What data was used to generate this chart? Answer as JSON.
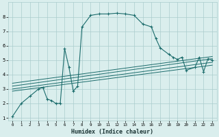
{
  "xlabel": "Humidex (Indice chaleur)",
  "bg_color": "#daeeed",
  "grid_color": "#aacccc",
  "line_color": "#1a6b6b",
  "xlim": [
    -0.5,
    23.5
  ],
  "ylim": [
    0.8,
    9.0
  ],
  "xticks": [
    0,
    1,
    2,
    3,
    4,
    5,
    6,
    7,
    8,
    9,
    10,
    11,
    12,
    13,
    14,
    15,
    16,
    17,
    18,
    19,
    20,
    21,
    22,
    23
  ],
  "yticks": [
    1,
    2,
    3,
    4,
    5,
    6,
    7,
    8
  ],
  "main_x": [
    0,
    1,
    2,
    3,
    3.5,
    4,
    4.5,
    5,
    5.5,
    6,
    6.5,
    7,
    7.5,
    8,
    9,
    10,
    11,
    12,
    13,
    14,
    15,
    16,
    16.5,
    17,
    18,
    18.5,
    19,
    19.5,
    20,
    21,
    21.5,
    22,
    22.5,
    23
  ],
  "main_y": [
    1.1,
    2.0,
    2.5,
    3.0,
    3.1,
    2.3,
    2.2,
    2.0,
    2.0,
    5.8,
    4.5,
    2.85,
    3.2,
    7.3,
    8.1,
    8.2,
    8.2,
    8.25,
    8.2,
    8.1,
    7.5,
    7.3,
    6.5,
    5.85,
    5.4,
    5.2,
    5.05,
    5.2,
    4.3,
    4.5,
    5.2,
    4.2,
    5.1,
    5.0
  ],
  "line1_x": [
    0,
    23
  ],
  "line1_y": [
    2.85,
    4.65
  ],
  "line2_x": [
    0,
    23
  ],
  "line2_y": [
    3.0,
    4.85
  ],
  "line3_x": [
    0,
    23
  ],
  "line3_y": [
    3.2,
    5.1
  ],
  "line4_x": [
    0,
    23
  ],
  "line4_y": [
    3.4,
    5.25
  ]
}
